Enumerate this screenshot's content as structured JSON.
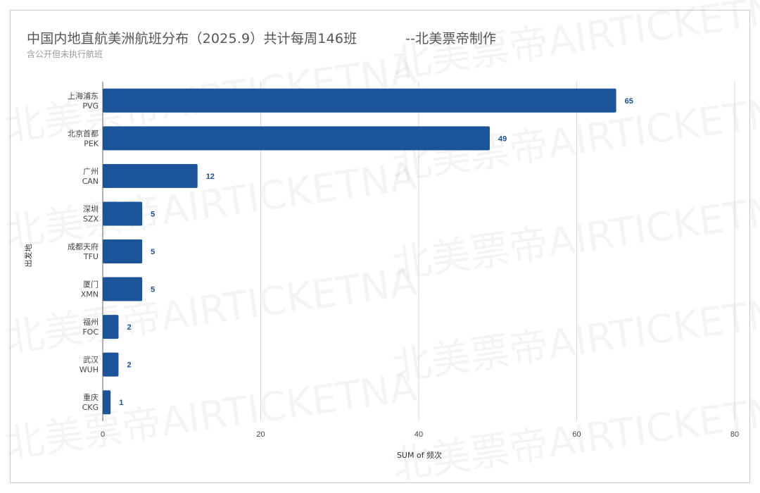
{
  "title": "中国内地直航美洲航班分布（2025.9）共计每周146班           --北美票帝制作",
  "subtitle": "含公开但未执行航班",
  "watermark": "北美票帝AIRTICKETNA",
  "colors": {
    "bar": "#1c5499",
    "value_label": "#1a4f94",
    "grid": "#d9d9d9",
    "axis": "#666666"
  },
  "chart_data": {
    "type": "bar",
    "orientation": "horizontal",
    "categories": [
      [
        "上海浦东",
        "PVG"
      ],
      [
        "北京首都",
        "PEK"
      ],
      [
        "广州",
        "CAN"
      ],
      [
        "深圳",
        "SZX"
      ],
      [
        "成都天府",
        "TFU"
      ],
      [
        "厦门",
        "XMN"
      ],
      [
        "福州",
        "FOC"
      ],
      [
        "武汉",
        "WUH"
      ],
      [
        "重庆",
        "CKG"
      ]
    ],
    "values": [
      65,
      49,
      12,
      5,
      5,
      5,
      2,
      2,
      1
    ],
    "xlabel": "SUM of 频次",
    "ylabel": "出发地",
    "xlim": [
      0,
      80
    ],
    "xticks": [
      0,
      20,
      40,
      60,
      80
    ],
    "grid": true,
    "data_labels": true
  }
}
